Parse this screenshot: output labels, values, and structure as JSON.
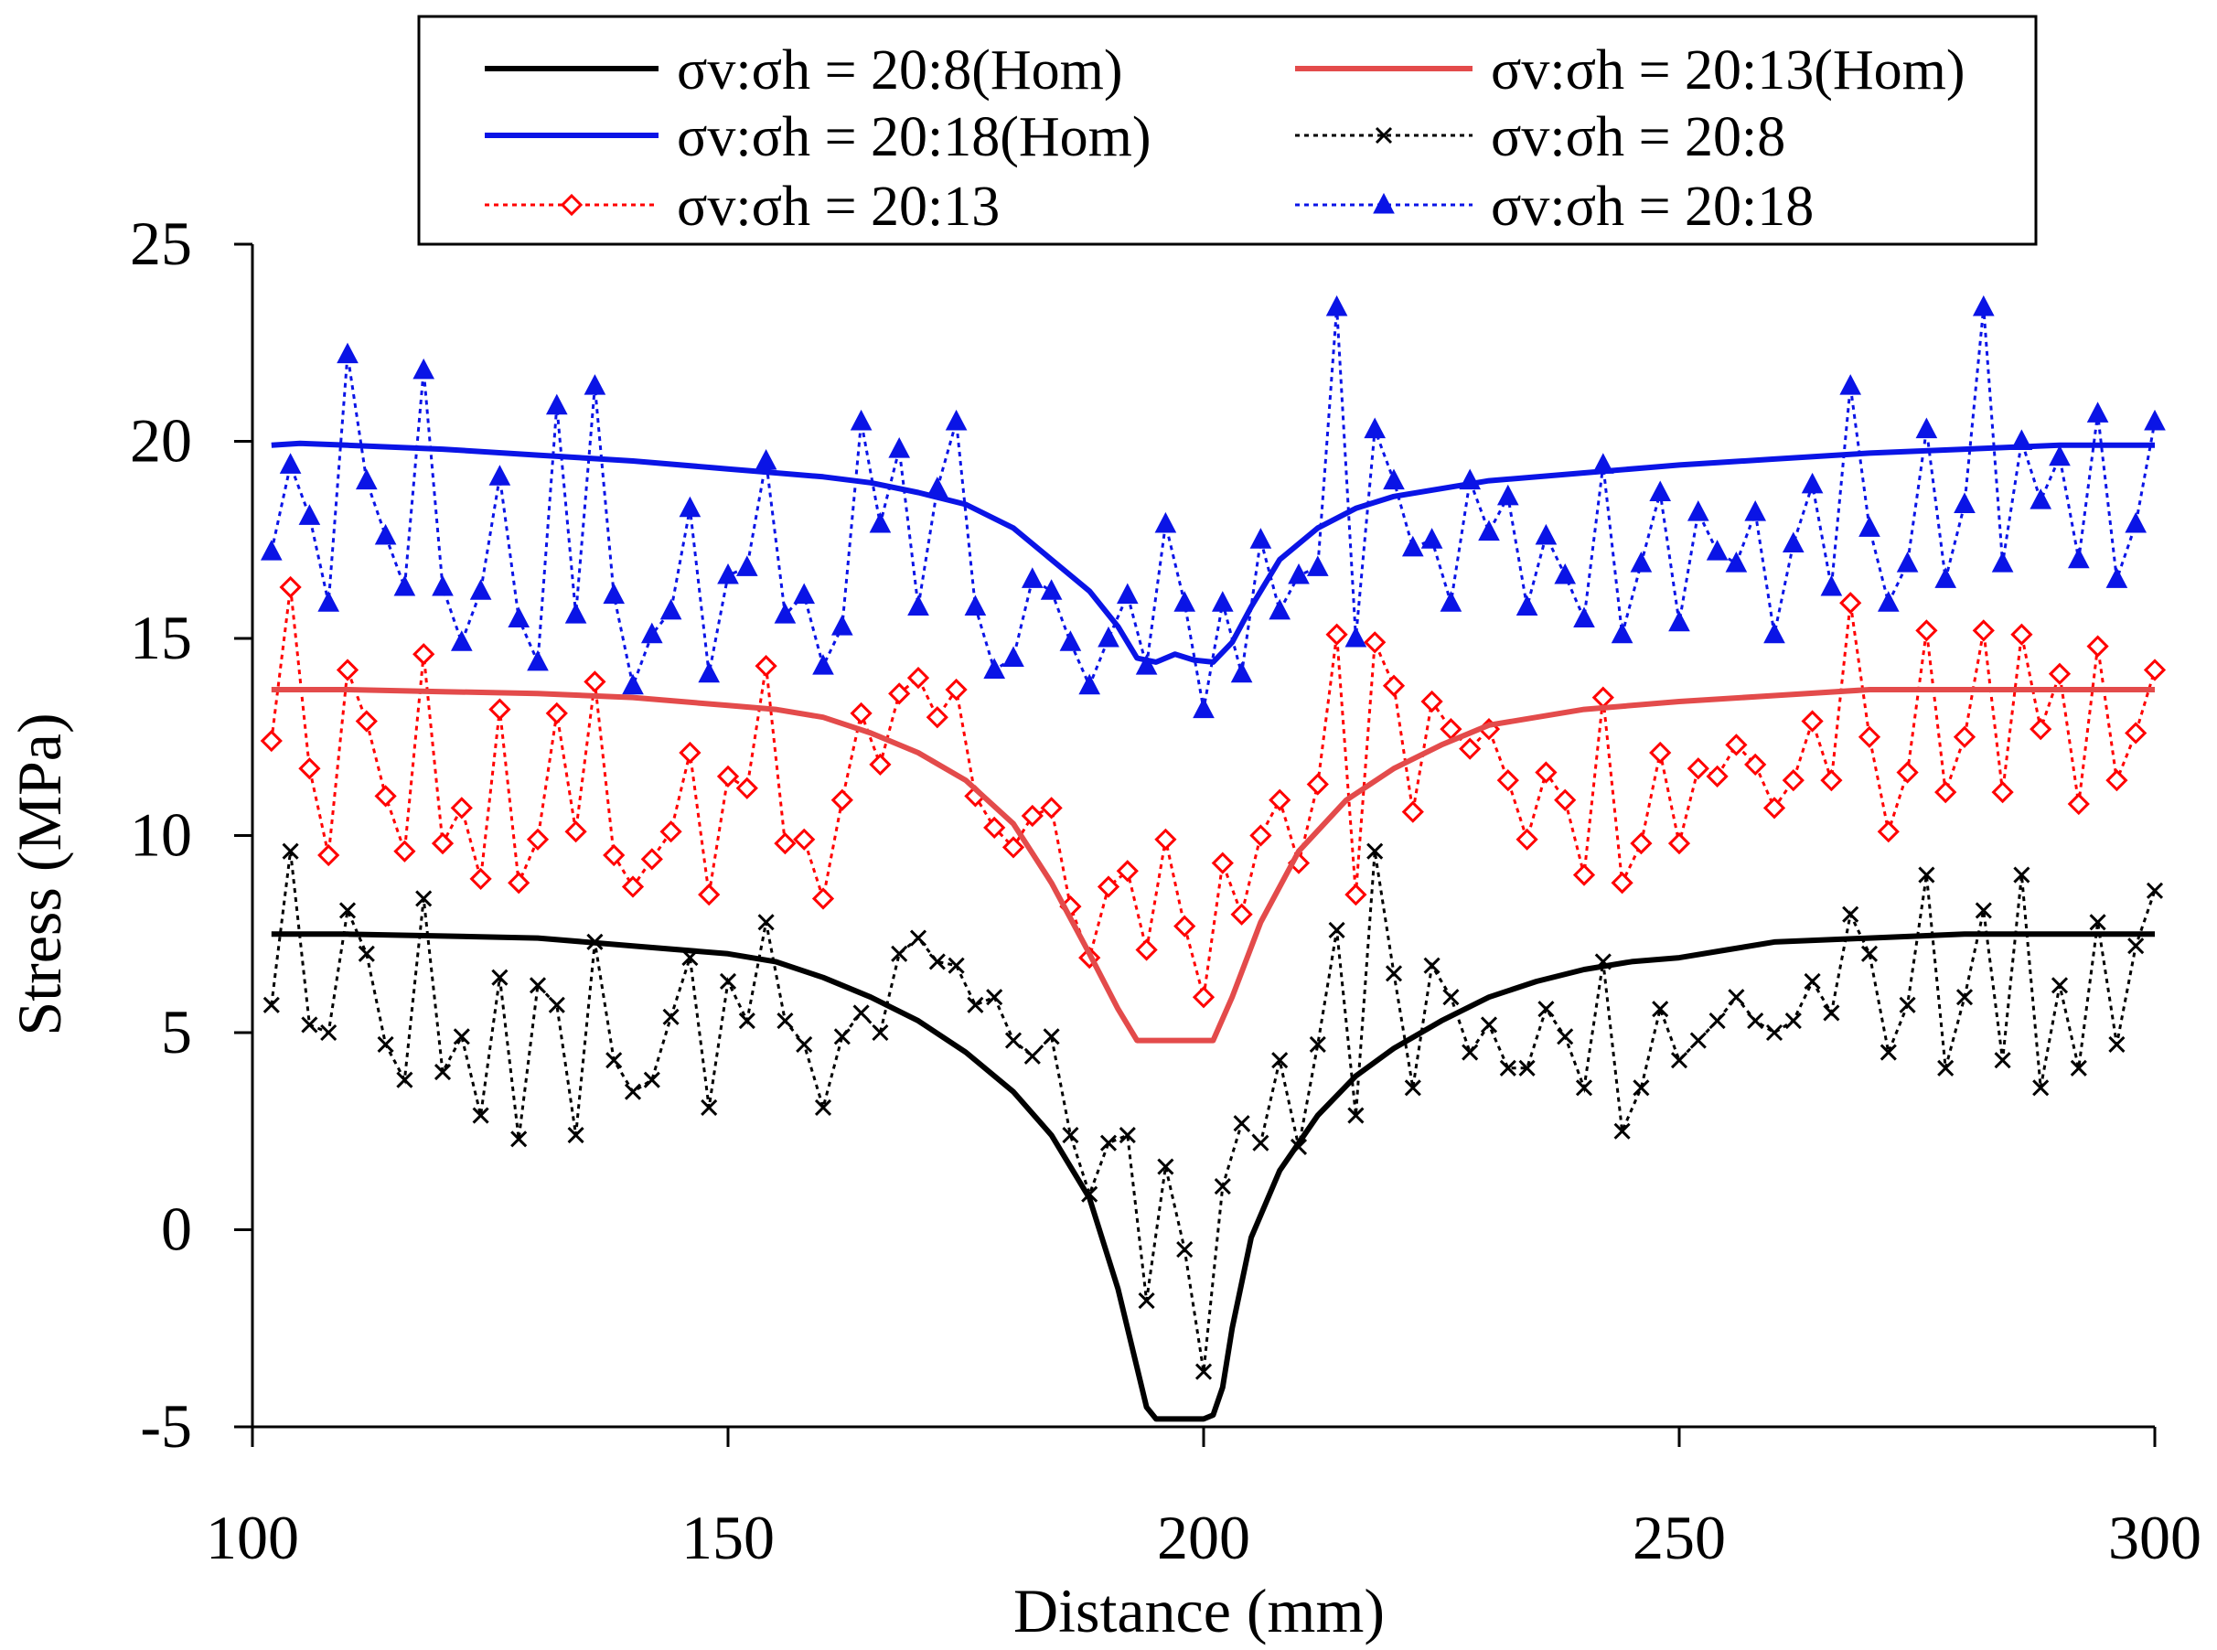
{
  "chart_data": {
    "type": "line",
    "title": "",
    "xlabel": "Distance (mm)",
    "ylabel": "Stress (MPa)",
    "xlim": [
      100,
      300
    ],
    "ylim": [
      -5,
      25
    ],
    "xticks": [
      100,
      150,
      200,
      250,
      300
    ],
    "yticks": [
      -5,
      0,
      5,
      10,
      15,
      20,
      25
    ],
    "grid": false,
    "legend_position": "top",
    "series": [
      {
        "name": "σv:σh = 20:8(Hom)",
        "color": "#000000",
        "style": "solid",
        "marker": "none",
        "x": [
          102,
          110,
          120,
          130,
          140,
          150,
          155,
          160,
          165,
          170,
          175,
          180,
          184,
          188,
          191,
          193,
          194,
          195,
          196,
          198,
          200,
          201,
          202,
          203,
          205,
          208,
          212,
          216,
          220,
          225,
          230,
          235,
          240,
          245,
          250,
          255,
          260,
          270,
          280,
          290,
          300
        ],
        "y": [
          7.5,
          7.5,
          7.45,
          7.4,
          7.2,
          7.0,
          6.8,
          6.4,
          5.9,
          5.3,
          4.5,
          3.5,
          2.4,
          0.8,
          -1.5,
          -3.5,
          -4.5,
          -4.8,
          -4.8,
          -4.8,
          -4.8,
          -4.7,
          -4.0,
          -2.5,
          -0.2,
          1.5,
          2.9,
          3.9,
          4.6,
          5.3,
          5.9,
          6.3,
          6.6,
          6.8,
          6.9,
          7.1,
          7.3,
          7.4,
          7.5,
          7.5,
          7.5
        ]
      },
      {
        "name": "σv:σh = 20:13(Hom)",
        "color": "#e34b4b",
        "style": "solid",
        "marker": "none",
        "x": [
          102,
          110,
          120,
          130,
          140,
          150,
          155,
          160,
          165,
          170,
          175,
          180,
          184,
          188,
          191,
          193,
          195,
          198,
          201,
          203,
          206,
          210,
          215,
          220,
          225,
          230,
          240,
          250,
          260,
          270,
          280,
          290,
          300
        ],
        "y": [
          13.7,
          13.7,
          13.65,
          13.6,
          13.5,
          13.3,
          13.2,
          13.0,
          12.6,
          12.1,
          11.4,
          10.3,
          8.8,
          7.0,
          5.6,
          4.8,
          4.8,
          4.8,
          4.8,
          5.9,
          7.8,
          9.6,
          10.9,
          11.7,
          12.3,
          12.8,
          13.2,
          13.4,
          13.55,
          13.7,
          13.7,
          13.7,
          13.7
        ]
      },
      {
        "name": "σv:σh = 20:18(Hom)",
        "color": "#0a14e6",
        "style": "solid",
        "marker": "none",
        "x": [
          102,
          105,
          110,
          120,
          130,
          140,
          150,
          155,
          160,
          165,
          170,
          175,
          180,
          184,
          188,
          191,
          193,
          195,
          197,
          199,
          201,
          203,
          205,
          208,
          212,
          216,
          220,
          225,
          230,
          240,
          250,
          260,
          270,
          280,
          290,
          300
        ],
        "y": [
          19.9,
          19.95,
          19.9,
          19.8,
          19.65,
          19.5,
          19.3,
          19.2,
          19.1,
          18.95,
          18.7,
          18.4,
          17.8,
          17.0,
          16.2,
          15.3,
          14.5,
          14.4,
          14.6,
          14.45,
          14.4,
          14.9,
          15.8,
          17.0,
          17.8,
          18.3,
          18.6,
          18.8,
          19.0,
          19.2,
          19.4,
          19.55,
          19.7,
          19.8,
          19.9,
          19.9
        ]
      },
      {
        "name": "σv:σh = 20:8",
        "color": "#000000",
        "style": "dotted",
        "marker": "x",
        "x": [
          102,
          104,
          106,
          108,
          110,
          112,
          114,
          116,
          118,
          120,
          122,
          124,
          126,
          128,
          130,
          132,
          134,
          136,
          138,
          140,
          142,
          144,
          146,
          148,
          150,
          152,
          154,
          156,
          158,
          160,
          162,
          164,
          166,
          168,
          170,
          172,
          174,
          176,
          178,
          180,
          182,
          184,
          186,
          188,
          190,
          192,
          194,
          196,
          198,
          200,
          202,
          204,
          206,
          208,
          210,
          212,
          214,
          216,
          218,
          220,
          222,
          224,
          226,
          228,
          230,
          232,
          234,
          236,
          238,
          240,
          242,
          244,
          246,
          248,
          250,
          252,
          254,
          256,
          258,
          260,
          262,
          264,
          266,
          268,
          270,
          272,
          274,
          276,
          278,
          280,
          282,
          284,
          286,
          288,
          290,
          292,
          294,
          296,
          298,
          300
        ],
        "y": [
          5.7,
          9.6,
          5.2,
          5.0,
          8.1,
          7.0,
          4.7,
          3.8,
          8.4,
          4.0,
          4.9,
          2.9,
          6.4,
          2.3,
          6.2,
          5.7,
          2.4,
          7.3,
          4.3,
          3.5,
          3.8,
          5.4,
          6.9,
          3.1,
          6.3,
          5.3,
          7.8,
          5.3,
          4.7,
          3.1,
          4.9,
          5.5,
          5.0,
          7.0,
          7.4,
          6.8,
          6.7,
          5.7,
          5.9,
          4.8,
          4.4,
          4.9,
          2.4,
          0.9,
          2.2,
          2.4,
          -1.8,
          1.6,
          -0.5,
          -3.6,
          1.1,
          2.7,
          2.2,
          4.3,
          2.1,
          4.7,
          7.6,
          2.9,
          9.6,
          6.5,
          3.6,
          6.7,
          5.9,
          4.5,
          5.2,
          4.1,
          4.1,
          5.6,
          4.9,
          3.6,
          6.8,
          2.5,
          3.6,
          5.6,
          4.3,
          4.8,
          5.3,
          5.9,
          5.3,
          5.0,
          5.3,
          6.3,
          5.5,
          8.0,
          7.0,
          4.5,
          5.7,
          9.0,
          4.1,
          5.9,
          8.1,
          4.3,
          9.0,
          3.6,
          6.2,
          4.1,
          7.8,
          4.7,
          7.2,
          8.6
        ]
      },
      {
        "name": "σv:σh = 20:13",
        "color": "#ff0000",
        "style": "dotted",
        "marker": "diamond",
        "x": [
          102,
          104,
          106,
          108,
          110,
          112,
          114,
          116,
          118,
          120,
          122,
          124,
          126,
          128,
          130,
          132,
          134,
          136,
          138,
          140,
          142,
          144,
          146,
          148,
          150,
          152,
          154,
          156,
          158,
          160,
          162,
          164,
          166,
          168,
          170,
          172,
          174,
          176,
          178,
          180,
          182,
          184,
          186,
          188,
          190,
          192,
          194,
          196,
          198,
          200,
          202,
          204,
          206,
          208,
          210,
          212,
          214,
          216,
          218,
          220,
          222,
          224,
          226,
          228,
          230,
          232,
          234,
          236,
          238,
          240,
          242,
          244,
          246,
          248,
          250,
          252,
          254,
          256,
          258,
          260,
          262,
          264,
          266,
          268,
          270,
          272,
          274,
          276,
          278,
          280,
          282,
          284,
          286,
          288,
          290,
          292,
          294,
          296,
          298,
          300
        ],
        "y": [
          12.4,
          16.3,
          11.7,
          9.5,
          14.2,
          12.9,
          11.0,
          9.6,
          14.6,
          9.8,
          10.7,
          8.9,
          13.2,
          8.8,
          9.9,
          13.1,
          10.1,
          13.9,
          9.5,
          8.7,
          9.4,
          10.1,
          12.1,
          8.5,
          11.5,
          11.2,
          14.3,
          9.8,
          9.9,
          8.4,
          10.9,
          13.1,
          11.8,
          13.6,
          14.0,
          13.0,
          13.7,
          11.0,
          10.2,
          9.7,
          10.5,
          10.7,
          8.2,
          6.9,
          8.7,
          9.1,
          7.1,
          9.9,
          7.7,
          5.9,
          9.3,
          8.0,
          10.0,
          10.9,
          9.3,
          11.3,
          15.1,
          8.5,
          14.9,
          13.8,
          10.6,
          13.4,
          12.7,
          12.2,
          12.7,
          11.4,
          9.9,
          11.6,
          10.9,
          9.0,
          13.5,
          8.8,
          9.8,
          12.1,
          9.8,
          11.7,
          11.5,
          12.3,
          11.8,
          10.7,
          11.4,
          12.9,
          11.4,
          15.9,
          12.5,
          10.1,
          11.6,
          15.2,
          11.1,
          12.5,
          15.2,
          11.1,
          15.1,
          12.7,
          14.1,
          10.8,
          14.8,
          11.4,
          12.6,
          14.2
        ]
      },
      {
        "name": "σv:σh = 20:18",
        "color": "#0a14e6",
        "style": "dotted",
        "marker": "triangle",
        "x": [
          102,
          104,
          106,
          108,
          110,
          112,
          114,
          116,
          118,
          120,
          122,
          124,
          126,
          128,
          130,
          132,
          134,
          136,
          138,
          140,
          142,
          144,
          146,
          148,
          150,
          152,
          154,
          156,
          158,
          160,
          162,
          164,
          166,
          168,
          170,
          172,
          174,
          176,
          178,
          180,
          182,
          184,
          186,
          188,
          190,
          192,
          194,
          196,
          198,
          200,
          202,
          204,
          206,
          208,
          210,
          212,
          214,
          216,
          218,
          220,
          222,
          224,
          226,
          228,
          230,
          232,
          234,
          236,
          238,
          240,
          242,
          244,
          246,
          248,
          250,
          252,
          254,
          256,
          258,
          260,
          262,
          264,
          266,
          268,
          270,
          272,
          274,
          276,
          278,
          280,
          282,
          284,
          286,
          288,
          290,
          292,
          294,
          296,
          298,
          300
        ],
        "y": [
          17.2,
          19.4,
          18.1,
          15.9,
          22.2,
          19.0,
          17.6,
          16.3,
          21.8,
          16.3,
          14.9,
          16.2,
          19.1,
          15.5,
          14.4,
          20.9,
          15.6,
          21.4,
          16.1,
          13.8,
          15.1,
          15.7,
          18.3,
          14.1,
          16.6,
          16.8,
          19.5,
          15.6,
          16.1,
          14.3,
          15.3,
          20.5,
          17.9,
          19.8,
          15.8,
          18.8,
          20.5,
          15.8,
          14.2,
          14.5,
          16.5,
          16.2,
          14.9,
          13.8,
          15.0,
          16.1,
          14.3,
          17.9,
          15.9,
          13.2,
          15.9,
          14.1,
          17.5,
          15.7,
          16.6,
          16.8,
          23.4,
          15.0,
          20.3,
          19.0,
          17.3,
          17.5,
          15.9,
          19.0,
          17.7,
          18.6,
          15.8,
          17.6,
          16.6,
          15.5,
          19.4,
          15.1,
          16.9,
          18.7,
          15.4,
          18.2,
          17.2,
          16.9,
          18.2,
          15.1,
          17.4,
          18.9,
          16.3,
          21.4,
          17.8,
          15.9,
          16.9,
          20.3,
          16.5,
          18.4,
          23.4,
          16.9,
          20.0,
          18.5,
          19.6,
          17.0,
          20.7,
          16.5,
          17.9,
          20.5
        ]
      }
    ]
  }
}
